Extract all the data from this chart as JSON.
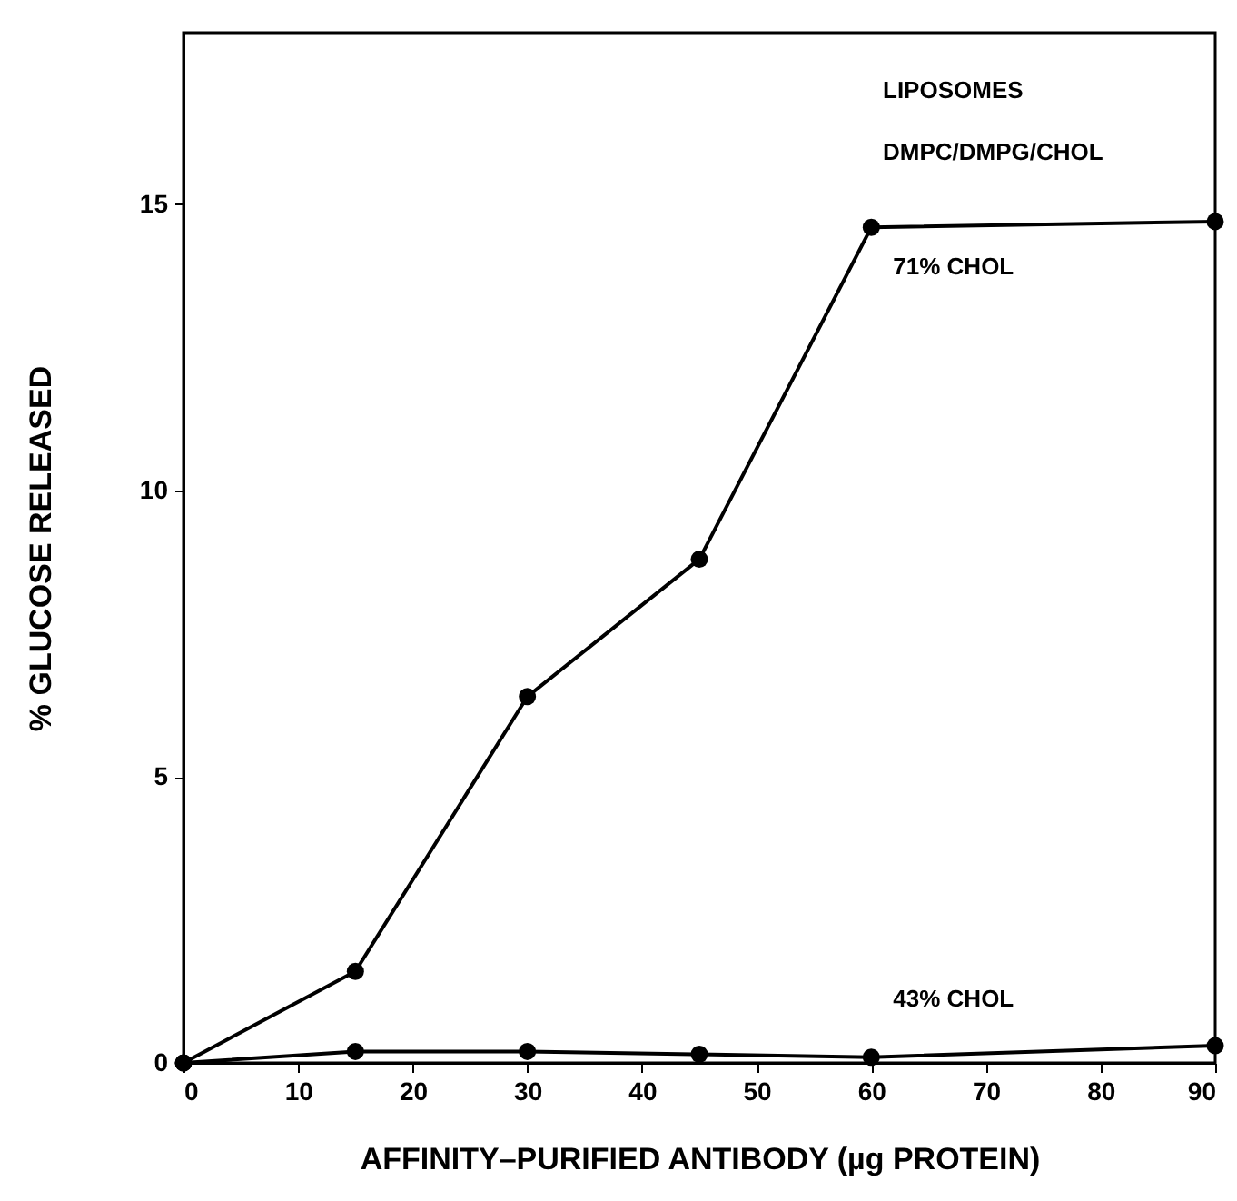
{
  "chart_data": {
    "type": "line",
    "xlabel": "AFFINITY–PURIFIED ANTIBODY (µg PROTEIN)",
    "ylabel": "% GLUCOSE RELEASED",
    "annotations": [
      "LIPOSOMES",
      "DMPC/DMPG/CHOL"
    ],
    "x": [
      0,
      15,
      30,
      45,
      60,
      90
    ],
    "series": [
      {
        "name": "71% CHOL",
        "color": "#000000",
        "values": [
          0,
          1.6,
          6.4,
          8.8,
          14.6,
          14.7
        ]
      },
      {
        "name": "43% CHOL",
        "color": "#000000",
        "values": [
          0,
          0.2,
          0.2,
          0.15,
          0.1,
          0.3
        ]
      }
    ],
    "xlim": [
      0,
      90
    ],
    "xticks": [
      0,
      10,
      20,
      30,
      40,
      50,
      60,
      70,
      80,
      90
    ],
    "ylim": [
      0,
      18
    ],
    "yticks": [
      0,
      5,
      10,
      15
    ],
    "grid": false,
    "marker": "circle",
    "line_style": "solid"
  }
}
